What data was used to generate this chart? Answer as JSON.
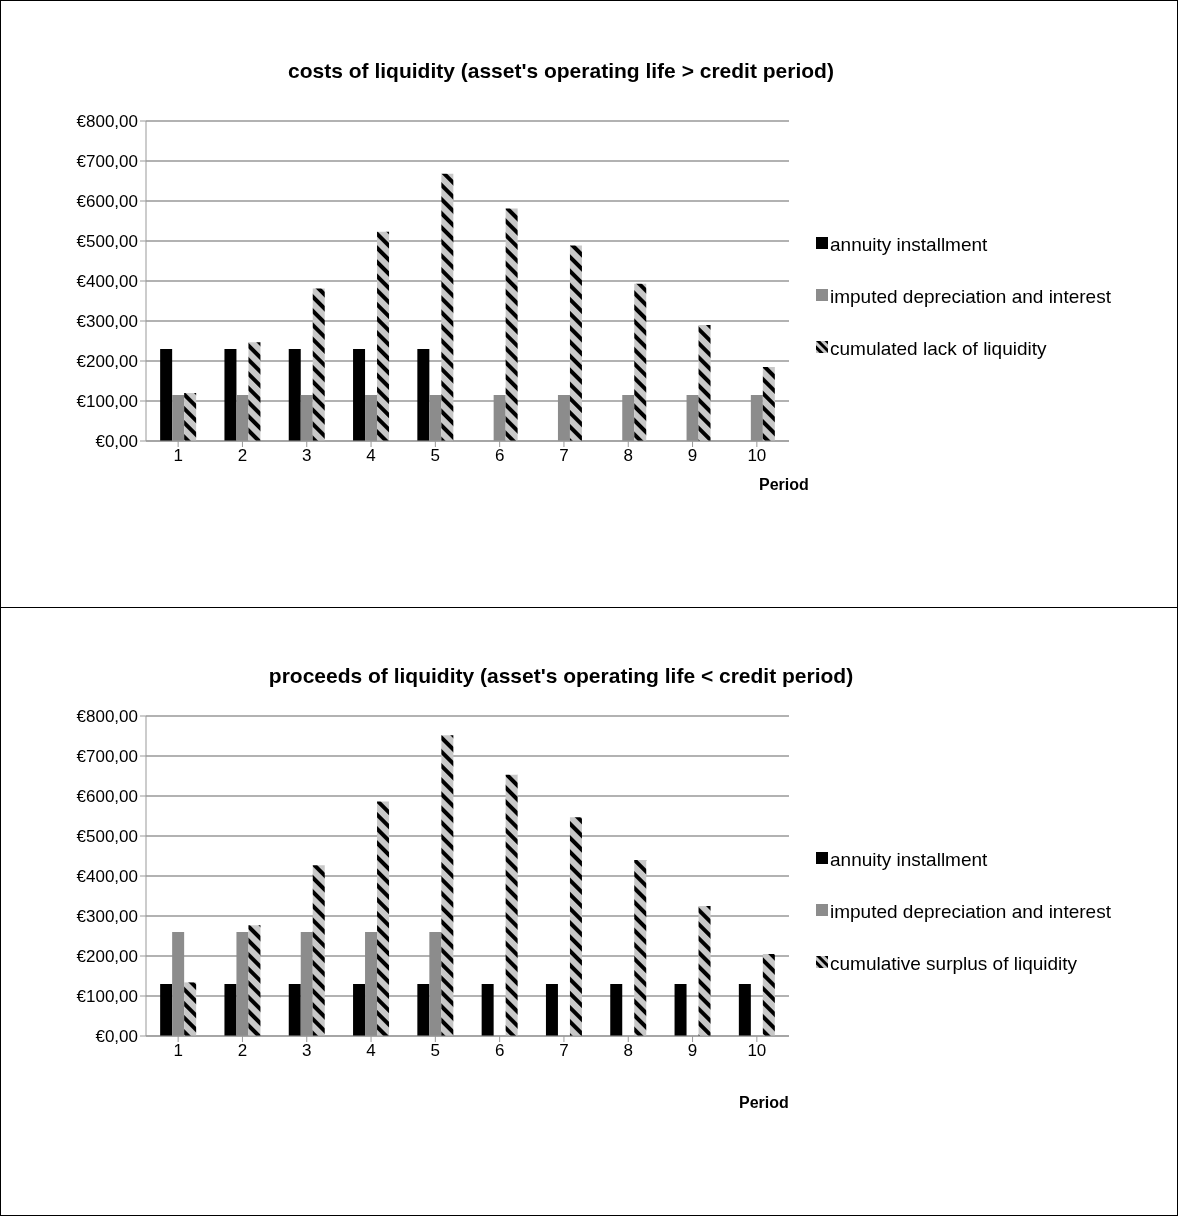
{
  "chart_data": [
    {
      "type": "bar",
      "title": "costs of liquidity (asset's operating life > credit period)",
      "xlabel": "Period",
      "categories": [
        "1",
        "2",
        "3",
        "4",
        "5",
        "6",
        "7",
        "8",
        "9",
        "10"
      ],
      "series": [
        {
          "name": "annuity installment",
          "color": "#000000",
          "values": [
            230,
            230,
            230,
            230,
            230,
            null,
            null,
            null,
            null,
            null
          ]
        },
        {
          "name": "imputed depreciation and interest",
          "color": "#8c8c8c",
          "values": [
            115,
            115,
            115,
            115,
            115,
            115,
            115,
            115,
            115,
            115
          ]
        },
        {
          "name": "cumulated lack of liquidity",
          "color": "#c8c8c8",
          "values": [
            120,
            247,
            381,
            523,
            668,
            581,
            489,
            393,
            290,
            185
          ]
        }
      ],
      "ylim": [
        0,
        800
      ],
      "yticks": [
        {
          "value": 0,
          "label": "€0,00"
        },
        {
          "value": 100,
          "label": "€100,00"
        },
        {
          "value": 200,
          "label": "€200,00"
        },
        {
          "value": 300,
          "label": "€300,00"
        },
        {
          "value": 400,
          "label": "€400,00"
        },
        {
          "value": 500,
          "label": "€500,00"
        },
        {
          "value": 600,
          "label": "€600,00"
        },
        {
          "value": 700,
          "label": "€700,00"
        },
        {
          "value": 800,
          "label": "€800,00"
        }
      ],
      "grid": "y",
      "legend": "right"
    },
    {
      "type": "bar",
      "title": "proceeds of liquidity (asset's operating life < credit period)",
      "xlabel": "Period",
      "categories": [
        "1",
        "2",
        "3",
        "4",
        "5",
        "6",
        "7",
        "8",
        "9",
        "10"
      ],
      "series": [
        {
          "name": "annuity installment",
          "color": "#000000",
          "values": [
            130,
            130,
            130,
            130,
            130,
            130,
            130,
            130,
            130,
            130
          ]
        },
        {
          "name": "imputed depreciation and interest",
          "color": "#8c8c8c",
          "values": [
            260,
            260,
            260,
            260,
            260,
            null,
            null,
            null,
            null,
            null
          ]
        },
        {
          "name": "cumulative surplus of liquidity",
          "color": "#c8c8c8",
          "values": [
            134,
            277,
            427,
            586,
            752,
            653,
            547,
            440,
            325,
            205
          ]
        }
      ],
      "ylim": [
        0,
        800
      ],
      "yticks": [
        {
          "value": 0,
          "label": "€0,00"
        },
        {
          "value": 100,
          "label": "€100,00"
        },
        {
          "value": 200,
          "label": "€200,00"
        },
        {
          "value": 300,
          "label": "€300,00"
        },
        {
          "value": 400,
          "label": "€400,00"
        },
        {
          "value": 500,
          "label": "€500,00"
        },
        {
          "value": 600,
          "label": "€600,00"
        },
        {
          "value": 700,
          "label": "€700,00"
        },
        {
          "value": 800,
          "label": "€800,00"
        }
      ],
      "grid": "y",
      "legend": "right"
    }
  ]
}
